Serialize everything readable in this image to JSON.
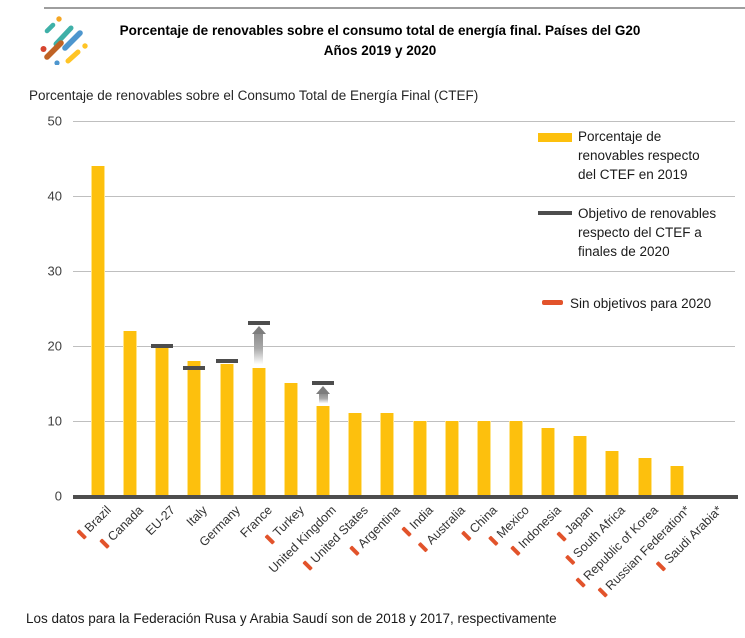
{
  "colors": {
    "bar": "#FDC00D",
    "target_line": "#4D4D4D",
    "no_target_marker": "#E2532B",
    "gridline": "#BFBFBF",
    "axis_line": "#4D4D4D",
    "gap_arrow": "#8E8E8E"
  },
  "chart_data": {
    "type": "bar",
    "title": "Porcentaje de renovables sobre el consumo total de energía final. Países del G20",
    "title_line2": "Años 2019 y 2020",
    "axis_note": "Porcentaje de renovables sobre el Consumo Total de Energía Final (CTEF)",
    "xlabel": "",
    "ylabel": "",
    "ylim": [
      0,
      50
    ],
    "yticks": [
      0,
      10,
      20,
      30,
      40,
      50
    ],
    "grid": true,
    "legend_position": "top-right",
    "legend": [
      {
        "swatch": "bar",
        "color": "#FDC00D",
        "label": "Porcentaje de\nrenovables respecto\ndel CTEF en 2019"
      },
      {
        "swatch": "line",
        "color": "#4D4D4D",
        "label": "Objetivo de renovables\nrespecto del CTEF a\nfinales de 2020"
      },
      {
        "swatch": "dash",
        "color": "#E2532B",
        "label": "Sin objetivos para 2020"
      }
    ],
    "categories": [
      "Brazil",
      "Canada",
      "EU-27",
      "Italy",
      "Germany",
      "France",
      "Turkey",
      "United Kingdom",
      "United States",
      "Argentina",
      "India",
      "Australia",
      "China",
      "Mexico",
      "Indonesia",
      "Japan",
      "South Africa",
      "Republic of Korea",
      "Russian Federation*",
      "Saudi Arabia*"
    ],
    "series": [
      {
        "name": "Porcentaje de renovables respecto del CTEF en 2019",
        "values": [
          44,
          22,
          19.7,
          18,
          17.5,
          17,
          15,
          12,
          11,
          11,
          10,
          10,
          10,
          10,
          9,
          8,
          6,
          5,
          4,
          0
        ]
      },
      {
        "name": "Objetivo de renovables respecto del CTEF a finales de 2020",
        "values": [
          null,
          null,
          20,
          17,
          18,
          23,
          null,
          15,
          null,
          null,
          null,
          null,
          null,
          null,
          null,
          null,
          null,
          null,
          null,
          null
        ]
      }
    ],
    "no_target_2020": [
      true,
      true,
      false,
      false,
      false,
      false,
      true,
      false,
      true,
      true,
      true,
      true,
      true,
      true,
      true,
      true,
      true,
      true,
      true,
      true
    ],
    "gap_arrows": [
      "France",
      "United Kingdom"
    ],
    "footnote": "Los datos para la Federación Rusa y Arabia Saudí son de 2018 y 2017, respectivamente"
  }
}
